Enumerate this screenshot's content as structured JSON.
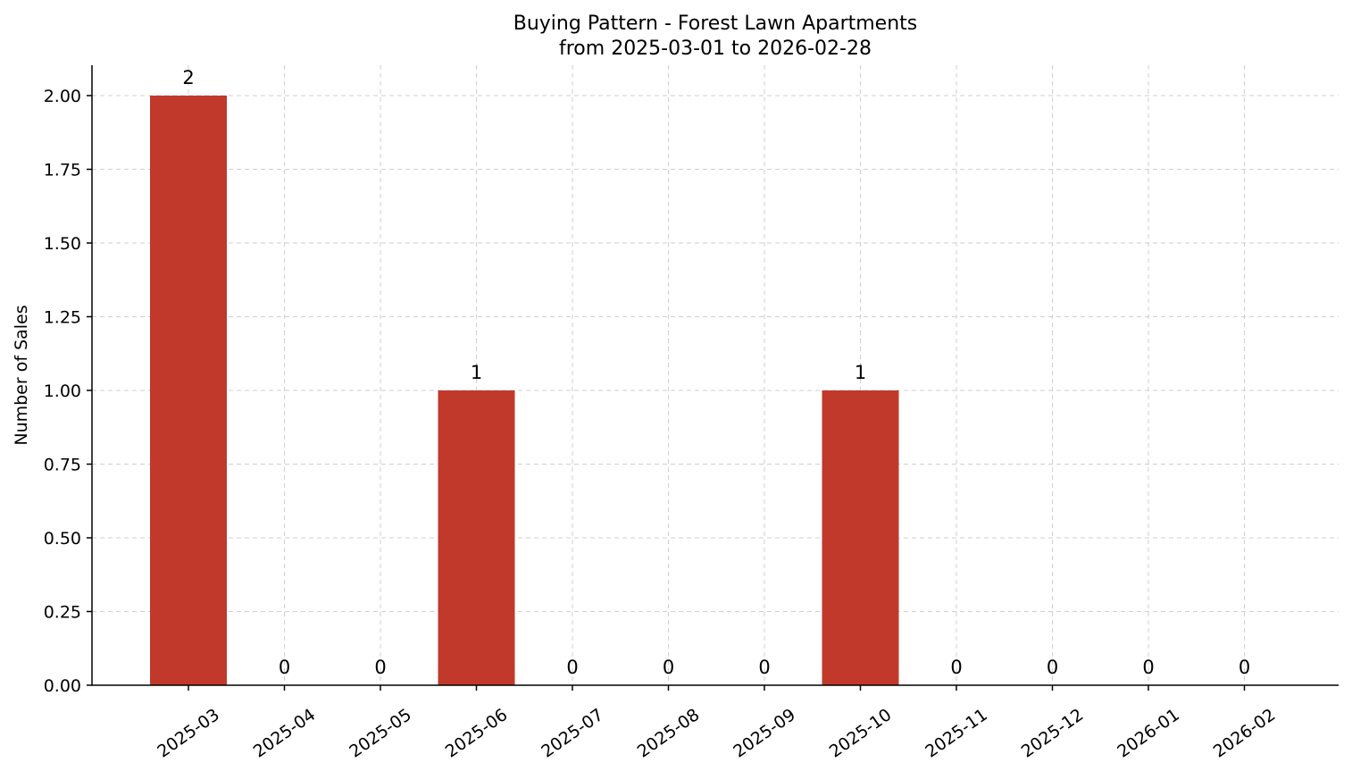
{
  "chart_data": {
    "type": "bar",
    "title": "Buying Pattern - Forest Lawn Apartments",
    "subtitle": "from 2025-03-01 to 2026-02-28",
    "xlabel": "",
    "ylabel": "Number of Sales",
    "categories": [
      "2025-03",
      "2025-04",
      "2025-05",
      "2025-06",
      "2025-07",
      "2025-08",
      "2025-09",
      "2025-10",
      "2025-11",
      "2025-12",
      "2026-01",
      "2026-02"
    ],
    "values": [
      2,
      0,
      0,
      1,
      0,
      0,
      0,
      1,
      0,
      0,
      0,
      0
    ],
    "data_labels": [
      "2",
      "0",
      "0",
      "1",
      "0",
      "0",
      "0",
      "1",
      "0",
      "0",
      "0",
      "0"
    ],
    "y_ticks": [
      "0.00",
      "0.25",
      "0.50",
      "0.75",
      "1.00",
      "1.25",
      "1.50",
      "1.75",
      "2.00"
    ],
    "ylim": [
      0,
      2.1
    ],
    "grid": true,
    "bar_color": "#c0392b",
    "legend": "none"
  }
}
